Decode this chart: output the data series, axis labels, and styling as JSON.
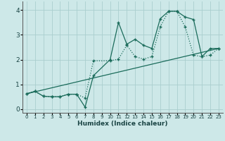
{
  "xlabel": "Humidex (Indice chaleur)",
  "bg_color": "#cde8e8",
  "grid_color": "#aacece",
  "line_color": "#1a6b5a",
  "xlim": [
    -0.5,
    23.5
  ],
  "ylim": [
    -0.15,
    4.35
  ],
  "xticks": [
    0,
    1,
    2,
    3,
    4,
    5,
    6,
    7,
    8,
    9,
    10,
    11,
    12,
    13,
    14,
    15,
    16,
    17,
    18,
    19,
    20,
    21,
    22,
    23
  ],
  "yticks": [
    0,
    1,
    2,
    3,
    4
  ],
  "series1_x": [
    0,
    1,
    2,
    3,
    4,
    5,
    6,
    7,
    8,
    10,
    11,
    12,
    13,
    14,
    15,
    16,
    17,
    18,
    19,
    20,
    21,
    22,
    23
  ],
  "series1_y": [
    0.62,
    0.72,
    0.52,
    0.5,
    0.5,
    0.6,
    0.6,
    0.08,
    1.35,
    2.0,
    3.5,
    2.62,
    2.82,
    2.58,
    2.45,
    3.65,
    3.95,
    3.95,
    3.72,
    3.62,
    2.12,
    2.45,
    2.45
  ],
  "series2_x": [
    0,
    1,
    2,
    3,
    4,
    5,
    6,
    7,
    8,
    10,
    11,
    12,
    13,
    14,
    15,
    16,
    17,
    18,
    19,
    20,
    21,
    22,
    23
  ],
  "series2_y": [
    0.62,
    0.72,
    0.52,
    0.5,
    0.5,
    0.6,
    0.6,
    0.45,
    1.95,
    1.95,
    2.02,
    2.58,
    2.12,
    2.02,
    2.12,
    3.32,
    3.95,
    3.95,
    3.32,
    2.18,
    2.12,
    2.18,
    2.45
  ],
  "series3_x": [
    0,
    23
  ],
  "series3_y": [
    0.62,
    2.45
  ]
}
